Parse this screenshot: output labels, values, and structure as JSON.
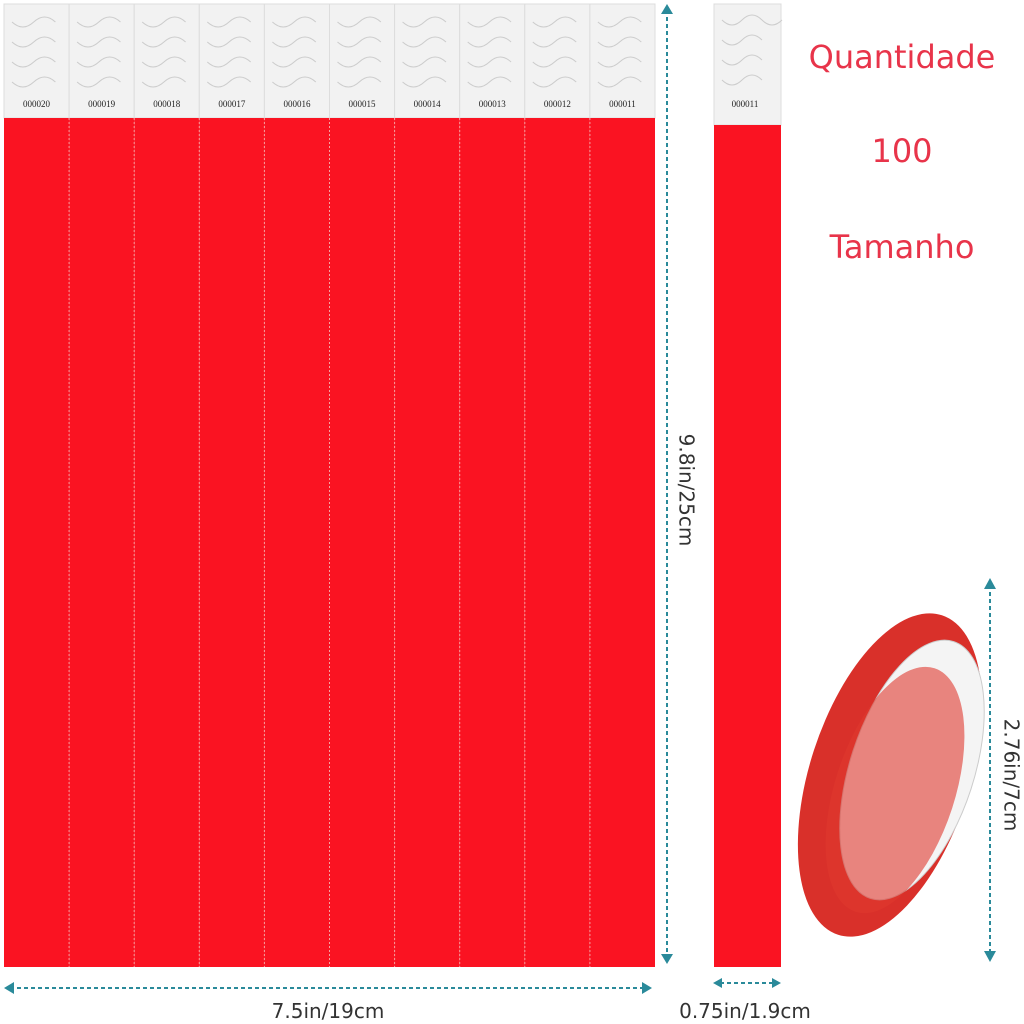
{
  "info": {
    "quantity_label": "Quantidade",
    "quantity": 100,
    "size_label": "Tamanho"
  },
  "strips": [
    "000020",
    "000019",
    "000018",
    "000017",
    "000016",
    "000015",
    "000014",
    "000013",
    "000012",
    "000011"
  ],
  "single_strip": "000011",
  "dimensions": {
    "sheet_height": "9.8in/25cm",
    "sheet_width": "7.5in/19cm",
    "strip_width": "0.75in/1.9cm",
    "band_diameter": "2.76in/7cm"
  }
}
